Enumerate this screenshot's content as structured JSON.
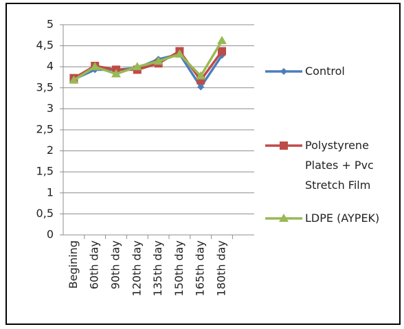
{
  "chart_data": {
    "type": "line",
    "categories": [
      "Begining",
      "60th day",
      "90th day",
      "120th day",
      "135th day",
      "150th day",
      "165th day",
      "180th day"
    ],
    "series": [
      {
        "name": "Control",
        "color": "#4a7ebb",
        "marker": "diamond",
        "values": [
          3.7,
          3.93,
          3.93,
          3.97,
          4.18,
          4.3,
          3.52,
          4.27
        ]
      },
      {
        "name": "Polystyrene Plates + Pvc Stretch Film",
        "color": "#be4b48",
        "marker": "square",
        "values": [
          3.73,
          4.02,
          3.93,
          3.93,
          4.08,
          4.37,
          3.68,
          4.37
        ]
      },
      {
        "name": "LDPE (AYPEK)",
        "color": "#98b954",
        "marker": "triangle",
        "values": [
          3.68,
          4.0,
          3.83,
          4.0,
          4.13,
          4.3,
          3.78,
          4.62
        ]
      }
    ],
    "ylim": [
      0,
      5
    ],
    "yticks": [
      0,
      {
        "value": 0.5,
        "label": "0,5"
      },
      1,
      {
        "value": 1.5,
        "label": "1,5"
      },
      2,
      {
        "value": 2.5,
        "label": "2,5"
      },
      3,
      {
        "value": 3.5,
        "label": "3,5"
      },
      4,
      {
        "value": 4.5,
        "label": "4,5"
      },
      5
    ],
    "grid": true
  }
}
